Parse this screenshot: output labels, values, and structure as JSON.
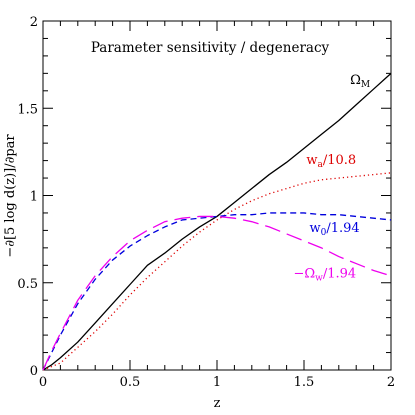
{
  "chart_data": {
    "type": "line",
    "title": "Parameter sensitivity / degeneracy",
    "xlabel": "z",
    "ylabel": "−∂[5 log d(z)]/∂par",
    "xlim": [
      0,
      2
    ],
    "ylim": [
      0,
      2
    ],
    "x_ticks": [
      {
        "value": 0,
        "label": "0"
      },
      {
        "value": 0.5,
        "label": "0.5"
      },
      {
        "value": 1,
        "label": "1"
      },
      {
        "value": 1.5,
        "label": "1.5"
      },
      {
        "value": 2,
        "label": "2"
      }
    ],
    "y_ticks": [
      {
        "value": 0,
        "label": "0"
      },
      {
        "value": 0.5,
        "label": "0.5"
      },
      {
        "value": 1,
        "label": "1"
      },
      {
        "value": 1.5,
        "label": "1.5"
      },
      {
        "value": 2,
        "label": "2"
      }
    ],
    "grid": false,
    "legend": "inline labels near curve ends",
    "series": [
      {
        "name": "Ω_M",
        "label_main": "Ω",
        "label_sub": "M",
        "label_suffix": "",
        "color": "#000000",
        "style": "solid",
        "label_at": [
          1.88,
          1.64
        ],
        "points": [
          [
            0,
            0
          ],
          [
            0.05,
            0.03
          ],
          [
            0.1,
            0.07
          ],
          [
            0.2,
            0.16
          ],
          [
            0.3,
            0.27
          ],
          [
            0.4,
            0.38
          ],
          [
            0.5,
            0.49
          ],
          [
            0.6,
            0.6
          ],
          [
            0.7,
            0.67
          ],
          [
            0.8,
            0.75
          ],
          [
            0.9,
            0.82
          ],
          [
            1.0,
            0.88
          ],
          [
            1.1,
            0.96
          ],
          [
            1.2,
            1.04
          ],
          [
            1.3,
            1.12
          ],
          [
            1.4,
            1.19
          ],
          [
            1.5,
            1.27
          ],
          [
            1.6,
            1.35
          ],
          [
            1.7,
            1.43
          ],
          [
            1.8,
            1.52
          ],
          [
            1.9,
            1.61
          ],
          [
            2.0,
            1.7
          ]
        ]
      },
      {
        "name": "w_a/10.8",
        "label_main": "w",
        "label_sub": "a",
        "label_suffix": "/10.8",
        "color": "#dd0000",
        "style": "dotted",
        "label_at": [
          1.8,
          1.18
        ],
        "points": [
          [
            0,
            0
          ],
          [
            0.1,
            0.04
          ],
          [
            0.2,
            0.13
          ],
          [
            0.3,
            0.22
          ],
          [
            0.4,
            0.32
          ],
          [
            0.5,
            0.43
          ],
          [
            0.6,
            0.53
          ],
          [
            0.7,
            0.62
          ],
          [
            0.8,
            0.71
          ],
          [
            0.9,
            0.79
          ],
          [
            1.0,
            0.86
          ],
          [
            1.1,
            0.92
          ],
          [
            1.2,
            0.97
          ],
          [
            1.3,
            1.01
          ],
          [
            1.4,
            1.04
          ],
          [
            1.5,
            1.07
          ],
          [
            1.6,
            1.09
          ],
          [
            1.7,
            1.1
          ],
          [
            1.8,
            1.11
          ],
          [
            1.9,
            1.12
          ],
          [
            2.0,
            1.13
          ]
        ]
      },
      {
        "name": "w_0/1.94",
        "label_main": "w",
        "label_sub": "0",
        "label_suffix": "/1.94",
        "color": "#0000dd",
        "style": "short-dash",
        "label_at": [
          1.82,
          0.79
        ],
        "points": [
          [
            0,
            0
          ],
          [
            0.05,
            0.1
          ],
          [
            0.1,
            0.2
          ],
          [
            0.2,
            0.38
          ],
          [
            0.3,
            0.52
          ],
          [
            0.4,
            0.63
          ],
          [
            0.5,
            0.71
          ],
          [
            0.6,
            0.77
          ],
          [
            0.7,
            0.82
          ],
          [
            0.8,
            0.86
          ],
          [
            0.9,
            0.87
          ],
          [
            1.0,
            0.88
          ],
          [
            1.1,
            0.89
          ],
          [
            1.2,
            0.89
          ],
          [
            1.3,
            0.9
          ],
          [
            1.4,
            0.9
          ],
          [
            1.5,
            0.9
          ],
          [
            1.6,
            0.89
          ],
          [
            1.7,
            0.89
          ],
          [
            1.8,
            0.88
          ],
          [
            1.9,
            0.87
          ],
          [
            2.0,
            0.86
          ]
        ]
      },
      {
        "name": "−Ω_w/1.94",
        "label_main": "−Ω",
        "label_sub": "w",
        "label_suffix": "/1.94",
        "color": "#ee00ee",
        "style": "long-dash",
        "label_at": [
          1.8,
          0.53
        ],
        "points": [
          [
            0,
            0
          ],
          [
            0.05,
            0.11
          ],
          [
            0.1,
            0.21
          ],
          [
            0.2,
            0.4
          ],
          [
            0.3,
            0.54
          ],
          [
            0.4,
            0.65
          ],
          [
            0.5,
            0.74
          ],
          [
            0.6,
            0.8
          ],
          [
            0.7,
            0.85
          ],
          [
            0.8,
            0.87
          ],
          [
            0.9,
            0.88
          ],
          [
            1.0,
            0.88
          ],
          [
            1.1,
            0.87
          ],
          [
            1.2,
            0.85
          ],
          [
            1.3,
            0.82
          ],
          [
            1.4,
            0.78
          ],
          [
            1.5,
            0.74
          ],
          [
            1.6,
            0.7
          ],
          [
            1.7,
            0.65
          ],
          [
            1.8,
            0.61
          ],
          [
            1.9,
            0.57
          ],
          [
            2.0,
            0.54
          ]
        ]
      }
    ]
  }
}
